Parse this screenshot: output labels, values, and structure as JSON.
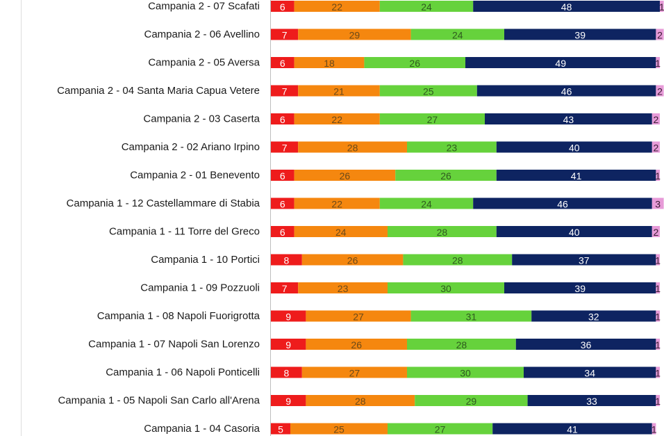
{
  "chart_data": {
    "type": "bar",
    "orientation": "horizontal",
    "stacked": true,
    "categories": [
      "Campania 2 - 07 Scafati",
      "Campania 2 - 06 Avellino",
      "Campania 2 - 05 Aversa",
      "Campania 2 - 04 Santa Maria Capua Vetere",
      "Campania 2 - 03 Caserta",
      "Campania 2 - 02 Ariano Irpino",
      "Campania 2 - 01 Benevento",
      "Campania 1 - 12 Castellammare di Stabia",
      "Campania 1 - 11 Torre del Greco",
      "Campania 1 - 10 Portici",
      "Campania 1 - 09 Pozzuoli",
      "Campania 1 - 08 Napoli Fuorigrotta",
      "Campania 1 - 07 Napoli San Lorenzo",
      "Campania 1 - 06 Napoli Ponticelli",
      "Campania 1 - 05 Napoli San Carlo all'Arena",
      "Campania 1 - 04 Casoria"
    ],
    "series": [
      {
        "color": "#ee1c1c",
        "label_color": "#ffffff",
        "values": [
          6,
          7,
          6,
          7,
          6,
          7,
          6,
          6,
          6,
          8,
          7,
          9,
          9,
          8,
          9,
          5
        ]
      },
      {
        "color": "#f5870f",
        "label_color": "#6b4a1a",
        "values": [
          22,
          29,
          18,
          21,
          22,
          28,
          26,
          22,
          24,
          26,
          23,
          27,
          26,
          27,
          28,
          25
        ]
      },
      {
        "color": "#66d23c",
        "label_color": "#2f5a1f",
        "values": [
          24,
          24,
          26,
          25,
          27,
          23,
          26,
          24,
          28,
          28,
          30,
          31,
          28,
          30,
          29,
          27
        ]
      },
      {
        "color": "#0e2461",
        "label_color": "#ffffff",
        "values": [
          48,
          39,
          49,
          46,
          43,
          40,
          41,
          46,
          40,
          37,
          39,
          32,
          36,
          34,
          33,
          41
        ]
      },
      {
        "color": "#e79bd8",
        "label_color": "#3a1b34",
        "values": [
          1,
          2,
          1,
          2,
          2,
          2,
          1,
          3,
          2,
          1,
          1,
          1,
          1,
          1,
          1,
          1
        ]
      }
    ],
    "xlim": [
      0,
      100
    ],
    "grid": false,
    "legend": "none"
  }
}
